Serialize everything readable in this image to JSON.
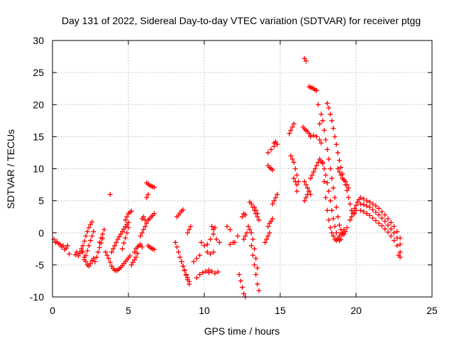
{
  "chart_data": {
    "type": "scatter",
    "title": "Day 131 of 2022, Sidereal Day-to-day VTEC variation (SDTVAR) for receiver ptgg",
    "xlabel": "GPS time / hours",
    "ylabel": "SDTVAR / TECUs",
    "xlim": [
      0,
      25
    ],
    "ylim": [
      -10,
      30
    ],
    "xticks": [
      0,
      5,
      10,
      15,
      20,
      25
    ],
    "yticks": [
      -10,
      -5,
      0,
      5,
      10,
      15,
      20,
      25,
      30
    ],
    "xtick_labels": [
      "0",
      "5",
      "10",
      "15",
      "20",
      "25"
    ],
    "ytick_labels": [
      "-10",
      "-5",
      "0",
      "5",
      "10",
      "15",
      "20",
      "25",
      "30"
    ],
    "grid": true,
    "marker": "+",
    "color": "#ff0000",
    "series_segments": [
      {
        "name": "arc-01",
        "x": [
          0.1,
          0.3,
          0.5,
          0.7,
          0.9,
          1.1
        ],
        "y": [
          -1.0,
          -1.4,
          -1.8,
          -2.0,
          -2.4,
          -3.3
        ]
      },
      {
        "name": "arc-02",
        "x": [
          0.2,
          0.4,
          0.6,
          0.8,
          1.0
        ],
        "y": [
          -1.5,
          -1.7,
          -2.2,
          -2.6,
          -2.0
        ]
      },
      {
        "name": "arc-03",
        "x": [
          1.5,
          1.6,
          1.7,
          1.8
        ],
        "y": [
          -3.4,
          -3.0,
          -3.6,
          -3.2
        ]
      },
      {
        "name": "arc-04",
        "x": [
          1.9,
          2.0,
          2.1,
          2.2,
          2.3,
          2.4,
          2.5,
          2.6,
          2.7
        ],
        "y": [
          -2.5,
          -3.0,
          -3.8,
          -4.5,
          -5.0,
          -5.2,
          -4.8,
          -4.3,
          -4.0
        ]
      },
      {
        "name": "arc-05",
        "x": [
          1.9,
          2.0,
          2.1,
          2.2,
          2.3,
          2.4,
          2.5,
          2.6
        ],
        "y": [
          -2.8,
          -2.0,
          -1.3,
          -0.5,
          0.2,
          0.8,
          1.3,
          1.7
        ]
      },
      {
        "name": "arc-06",
        "x": [
          2.1,
          2.2,
          2.3,
          2.4,
          2.5,
          2.6,
          2.7
        ],
        "y": [
          -4.2,
          -3.5,
          -2.8,
          -2.0,
          -1.2,
          -0.5,
          0.2
        ]
      },
      {
        "name": "arc-07",
        "x": [
          2.8,
          2.9,
          3.0,
          3.1,
          3.2,
          3.3
        ],
        "y": [
          -4.5,
          -3.8,
          -3.0,
          -2.3,
          -1.6,
          -0.9
        ]
      },
      {
        "name": "arc-08",
        "x": [
          3.1,
          3.2,
          3.3,
          3.4
        ],
        "y": [
          -1.5,
          -0.8,
          -0.2,
          0.5
        ]
      },
      {
        "name": "arc-09",
        "x": [
          3.5,
          3.6,
          3.7,
          3.8,
          3.9,
          4.0,
          4.1,
          4.2
        ],
        "y": [
          -3.0,
          -3.5,
          -4.0,
          -4.6,
          -5.2,
          -5.6,
          -5.8,
          -5.9
        ]
      },
      {
        "name": "arc-10",
        "x": [
          3.9,
          4.0,
          4.1,
          4.2,
          4.3,
          4.4,
          4.5,
          4.6,
          4.7,
          4.8,
          4.9,
          5.0
        ],
        "y": [
          -3.0,
          -2.5,
          -2.0,
          -1.5,
          -1.0,
          -0.6,
          -0.2,
          0.2,
          0.6,
          1.0,
          1.3,
          1.6
        ]
      },
      {
        "name": "arc-11",
        "x": [
          4.3,
          4.4,
          4.5,
          4.6,
          4.7,
          4.8,
          4.9,
          5.0,
          5.1
        ],
        "y": [
          -5.8,
          -5.6,
          -5.4,
          -5.1,
          -4.8,
          -4.5,
          -4.2,
          -3.9,
          -3.6
        ]
      },
      {
        "name": "arc-12",
        "x": [
          4.6,
          4.7,
          4.8,
          4.9,
          5.0
        ],
        "y": [
          -2.5,
          -1.6,
          -0.8,
          0.0,
          0.8
        ]
      },
      {
        "name": "arc-13",
        "x": [
          4.8,
          4.9,
          5.0,
          5.1,
          5.2
        ],
        "y": [
          2.0,
          2.5,
          3.0,
          3.2,
          3.4
        ]
      },
      {
        "name": "arc-14",
        "x": [
          3.8
        ],
        "y": [
          6.0
        ]
      },
      {
        "name": "arc-15",
        "x": [
          5.2,
          5.3,
          5.4,
          5.5,
          5.6
        ],
        "y": [
          -5.0,
          -4.6,
          -4.2,
          -3.8,
          -3.2
        ]
      },
      {
        "name": "arc-16",
        "x": [
          5.4,
          5.5,
          5.6,
          5.7,
          5.8,
          5.9
        ],
        "y": [
          -3.0,
          -2.5,
          -2.2,
          -2.0,
          -1.8,
          -2.2
        ]
      },
      {
        "name": "arc-17",
        "x": [
          5.8,
          5.9,
          6.0,
          6.1,
          6.2
        ],
        "y": [
          -0.5,
          0.0,
          0.5,
          1.0,
          1.5
        ]
      },
      {
        "name": "arc-18",
        "x": [
          5.9,
          6.0,
          6.1
        ],
        "y": [
          2.2,
          2.5,
          2.0
        ]
      },
      {
        "name": "arc-19",
        "x": [
          6.3,
          6.4,
          6.5,
          6.6,
          6.7
        ],
        "y": [
          2.0,
          2.2,
          2.5,
          2.7,
          3.0
        ]
      },
      {
        "name": "arc-20",
        "x": [
          6.2,
          6.3,
          6.4,
          6.5,
          6.6,
          6.7
        ],
        "y": [
          7.8,
          7.6,
          7.4,
          7.3,
          7.2,
          7.1
        ]
      },
      {
        "name": "arc-21",
        "x": [
          6.2,
          6.3
        ],
        "y": [
          5.5,
          6.0
        ]
      },
      {
        "name": "arc-22",
        "x": [
          6.3,
          6.4,
          6.5,
          6.6,
          6.7
        ],
        "y": [
          -2.0,
          -2.2,
          -2.4,
          -2.5,
          -2.6
        ]
      },
      {
        "name": "arc-23",
        "x": [
          8.1,
          8.2,
          8.3,
          8.4,
          8.5,
          8.6,
          8.7,
          8.8,
          8.9,
          9.0
        ],
        "y": [
          -1.5,
          -2.2,
          -3.0,
          -3.8,
          -4.5,
          -5.2,
          -5.9,
          -6.6,
          -7.3,
          -8.0
        ]
      },
      {
        "name": "arc-24",
        "x": [
          8.2,
          8.3,
          8.4,
          8.5,
          8.6
        ],
        "y": [
          2.5,
          2.8,
          3.1,
          3.4,
          3.6
        ]
      },
      {
        "name": "arc-25",
        "x": [
          8.5,
          8.6,
          8.7,
          8.8,
          8.9,
          9.0
        ],
        "y": [
          -4.5,
          -5.2,
          -5.8,
          -6.5,
          -7.0,
          -7.6
        ]
      },
      {
        "name": "arc-26",
        "x": [
          8.9,
          9.0,
          9.1
        ],
        "y": [
          0.0,
          0.5,
          1.0
        ]
      },
      {
        "name": "arc-27",
        "x": [
          9.3,
          9.5,
          9.7
        ],
        "y": [
          -4.5,
          -4.0,
          -3.5
        ]
      },
      {
        "name": "arc-28",
        "x": [
          9.5,
          9.7,
          9.9,
          10.1,
          10.3
        ],
        "y": [
          -7.0,
          -6.5,
          -6.2,
          -6.0,
          -5.8
        ]
      },
      {
        "name": "arc-29",
        "x": [
          9.8,
          10.0,
          10.2,
          10.4
        ],
        "y": [
          -1.5,
          -2.0,
          -1.8,
          -1.0
        ]
      },
      {
        "name": "arc-30",
        "x": [
          10.2,
          10.4,
          10.6
        ],
        "y": [
          -3.0,
          -3.3,
          -3.0
        ]
      },
      {
        "name": "arc-31",
        "x": [
          10.3,
          10.5,
          10.7,
          10.9
        ],
        "y": [
          -6.2,
          -6.0,
          -6.3,
          -6.1
        ]
      },
      {
        "name": "arc-32",
        "x": [
          10.5,
          10.6,
          10.7
        ],
        "y": [
          1.0,
          0.5,
          0.8
        ]
      },
      {
        "name": "arc-33",
        "x": [
          10.6,
          10.8,
          11.0
        ],
        "y": [
          -0.2,
          -1.0,
          -1.5
        ]
      },
      {
        "name": "arc-34",
        "x": [
          11.5,
          11.7,
          11.9
        ],
        "y": [
          1.0,
          0.5,
          -1.5
        ]
      },
      {
        "name": "arc-35",
        "x": [
          11.7,
          12.0,
          12.2
        ],
        "y": [
          -1.8,
          -1.5,
          -0.5
        ]
      },
      {
        "name": "arc-36",
        "x": [
          12.3,
          12.4,
          12.5,
          12.6,
          12.7
        ],
        "y": [
          -6.5,
          -7.5,
          -8.5,
          -9.5,
          -10.0
        ]
      },
      {
        "name": "arc-37",
        "x": [
          12.5,
          12.6,
          12.7
        ],
        "y": [
          2.5,
          3.0,
          2.8
        ]
      },
      {
        "name": "arc-38",
        "x": [
          12.6,
          12.7,
          12.8
        ],
        "y": [
          -1.0,
          -0.5,
          0.0
        ]
      },
      {
        "name": "arc-39",
        "x": [
          12.9,
          13.0,
          13.1,
          13.2,
          13.3,
          13.4,
          13.5
        ],
        "y": [
          1.0,
          0.5,
          0.0,
          -1.0,
          -2.5,
          -4.0,
          -5.5
        ]
      },
      {
        "name": "arc-40",
        "x": [
          13.0,
          13.1,
          13.2,
          13.3,
          13.4,
          13.5
        ],
        "y": [
          4.8,
          4.5,
          4.0,
          3.5,
          3.0,
          2.5
        ]
      },
      {
        "name": "arc-41",
        "x": [
          13.1,
          13.2,
          13.3,
          13.4,
          13.5,
          13.6
        ],
        "y": [
          -2.0,
          -3.5,
          -5.0,
          -6.5,
          -8.0,
          -9.0
        ]
      },
      {
        "name": "arc-42",
        "x": [
          13.3,
          13.4,
          13.5,
          13.6
        ],
        "y": [
          4.0,
          3.5,
          3.0,
          2.0
        ]
      },
      {
        "name": "arc-43",
        "x": [
          14.0,
          14.1,
          14.2,
          14.3
        ],
        "y": [
          -1.5,
          -1.0,
          -0.5,
          0.0
        ]
      },
      {
        "name": "arc-44",
        "x": [
          14.2,
          14.3,
          14.4,
          14.5
        ],
        "y": [
          1.0,
          1.5,
          1.8,
          2.2
        ]
      },
      {
        "name": "arc-45",
        "x": [
          14.2,
          14.3,
          14.4,
          14.5
        ],
        "y": [
          10.5,
          10.2,
          10.0,
          9.8
        ]
      },
      {
        "name": "arc-46",
        "x": [
          14.2,
          14.4,
          14.6
        ],
        "y": [
          12.5,
          13.0,
          13.5
        ]
      },
      {
        "name": "arc-47",
        "x": [
          14.6,
          14.7,
          14.8
        ],
        "y": [
          14.0,
          14.2,
          13.8
        ]
      },
      {
        "name": "arc-48",
        "x": [
          14.5,
          14.6,
          14.7,
          14.8
        ],
        "y": [
          4.5,
          5.0,
          5.5,
          6.0
        ]
      },
      {
        "name": "arc-49",
        "x": [
          15.6,
          15.7,
          15.8,
          15.9
        ],
        "y": [
          15.5,
          16.0,
          16.5,
          17.0
        ]
      },
      {
        "name": "arc-50",
        "x": [
          15.7,
          15.8,
          15.9,
          16.0,
          16.1,
          16.2
        ],
        "y": [
          12.0,
          11.5,
          11.0,
          10.0,
          9.0,
          8.0
        ]
      },
      {
        "name": "arc-51",
        "x": [
          15.9,
          16.0,
          16.1
        ],
        "y": [
          8.5,
          8.0,
          7.5
        ]
      },
      {
        "name": "arc-52",
        "x": [
          16.1
        ],
        "y": [
          6.5
        ]
      },
      {
        "name": "arc-53",
        "x": [
          16.6,
          16.7
        ],
        "y": [
          27.2,
          26.8
        ]
      },
      {
        "name": "arc-54",
        "x": [
          16.5,
          16.6,
          16.7,
          16.8,
          16.9,
          17.0
        ],
        "y": [
          16.5,
          16.2,
          16.0,
          15.8,
          15.5,
          15.2
        ]
      },
      {
        "name": "arc-55",
        "x": [
          16.6,
          16.7,
          16.8,
          16.9,
          17.0
        ],
        "y": [
          8.0,
          7.5,
          7.0,
          6.5,
          6.0
        ]
      },
      {
        "name": "arc-56",
        "x": [
          16.6,
          16.7,
          16.8,
          16.9
        ],
        "y": [
          5.0,
          5.5,
          6.0,
          6.5
        ]
      },
      {
        "name": "arc-57",
        "x": [
          16.9,
          17.0,
          17.1,
          17.2,
          17.3,
          17.4,
          17.5,
          17.6,
          17.7,
          17.8,
          17.9,
          18.0,
          18.1,
          18.2,
          18.3,
          18.4,
          18.5,
          18.6,
          18.7,
          18.8,
          18.9,
          19.0
        ],
        "y": [
          22.8,
          22.7,
          22.6,
          22.5,
          22.3,
          22.2,
          20.0,
          17.0,
          14.0,
          11.0,
          8.0,
          5.5,
          3.5,
          2.0,
          0.8,
          0.0,
          -0.5,
          -1.0,
          -1.2,
          -1.0,
          -0.5,
          0.0
        ]
      },
      {
        "name": "arc-58",
        "x": [
          17.0,
          17.2,
          17.4,
          17.6
        ],
        "y": [
          15.0,
          15.2,
          15.0,
          14.5
        ]
      },
      {
        "name": "arc-59",
        "x": [
          17.0,
          17.1,
          17.2,
          17.3,
          17.4,
          17.5,
          17.6,
          17.7,
          17.8,
          17.9,
          18.0,
          18.1,
          18.2,
          18.3,
          18.4,
          18.5,
          18.6,
          18.7,
          18.8,
          18.9,
          19.0,
          19.1,
          19.2
        ],
        "y": [
          8.5,
          9.0,
          9.5,
          10.0,
          10.5,
          11.0,
          11.5,
          11.2,
          10.8,
          10.0,
          9.0,
          7.8,
          6.5,
          5.0,
          3.5,
          2.2,
          1.0,
          0.0,
          -0.8,
          -1.2,
          -1.0,
          -0.3,
          0.5
        ]
      },
      {
        "name": "arc-60",
        "x": [
          17.7,
          17.8,
          17.9,
          18.0,
          18.1,
          18.2,
          18.3,
          18.4,
          18.5,
          18.6,
          18.7,
          18.8,
          18.9,
          19.0,
          19.1,
          19.2,
          19.3,
          19.4
        ],
        "y": [
          18.5,
          17.5,
          16.0,
          14.5,
          13.0,
          11.5,
          10.0,
          8.5,
          7.0,
          5.5,
          4.0,
          2.5,
          1.2,
          0.5,
          0.0,
          -0.2,
          0.2,
          0.8
        ]
      },
      {
        "name": "arc-61",
        "x": [
          18.1,
          18.2,
          18.3,
          18.4,
          18.5,
          18.6,
          18.7,
          18.8,
          18.9,
          19.0,
          19.1,
          19.2,
          19.3,
          19.4,
          19.5,
          19.6,
          19.7,
          19.8,
          19.9,
          20.0
        ],
        "y": [
          20.2,
          19.5,
          18.5,
          17.5,
          16.3,
          15.0,
          13.8,
          12.5,
          11.3,
          10.2,
          9.2,
          8.3,
          7.5,
          6.6,
          5.5,
          4.5,
          3.5,
          3.0,
          3.0,
          3.5
        ]
      },
      {
        "name": "arc-62",
        "x": [
          18.8,
          18.9,
          19.0,
          19.1,
          19.2,
          19.3,
          19.4,
          19.5
        ],
        "y": [
          10.0,
          9.5,
          9.0,
          8.5,
          8.2,
          8.0,
          7.5,
          7.0
        ]
      },
      {
        "name": "arc-63",
        "x": [
          19.6,
          19.7,
          19.8,
          19.9,
          20.0,
          20.1,
          20.2
        ],
        "y": [
          2.0,
          2.5,
          3.2,
          3.8,
          4.3,
          4.8,
          5.2
        ]
      },
      {
        "name": "arc-64",
        "x": [
          20.3,
          20.5,
          20.7,
          20.9,
          21.1,
          21.3,
          21.5,
          21.7,
          21.9,
          22.1,
          22.3,
          22.5,
          22.7,
          22.9
        ],
        "y": [
          5.5,
          5.3,
          5.0,
          4.8,
          4.5,
          4.2,
          3.8,
          3.3,
          2.8,
          2.2,
          1.6,
          1.0,
          0.2,
          -0.8
        ]
      },
      {
        "name": "arc-65",
        "x": [
          20.3,
          20.5,
          20.7,
          20.9,
          21.1,
          21.3,
          21.5,
          21.7,
          21.9,
          22.1,
          22.3,
          22.5,
          22.7,
          22.9
        ],
        "y": [
          4.5,
          4.4,
          4.2,
          4.0,
          3.6,
          3.2,
          2.8,
          2.3,
          1.8,
          1.2,
          0.6,
          0.0,
          -0.8,
          -1.8
        ]
      },
      {
        "name": "arc-66",
        "x": [
          20.3,
          20.5,
          20.7,
          20.9,
          21.1,
          21.3,
          21.5,
          21.7,
          21.9,
          22.1,
          22.3,
          22.5,
          22.7,
          22.9
        ],
        "y": [
          3.5,
          3.3,
          3.0,
          2.7,
          2.3,
          1.9,
          1.5,
          1.1,
          0.6,
          0.1,
          -0.5,
          -1.2,
          -2.0,
          -3.0
        ]
      },
      {
        "name": "arc-67",
        "x": [
          22.8,
          22.9
        ],
        "y": [
          -3.5,
          -3.8
        ]
      }
    ]
  }
}
